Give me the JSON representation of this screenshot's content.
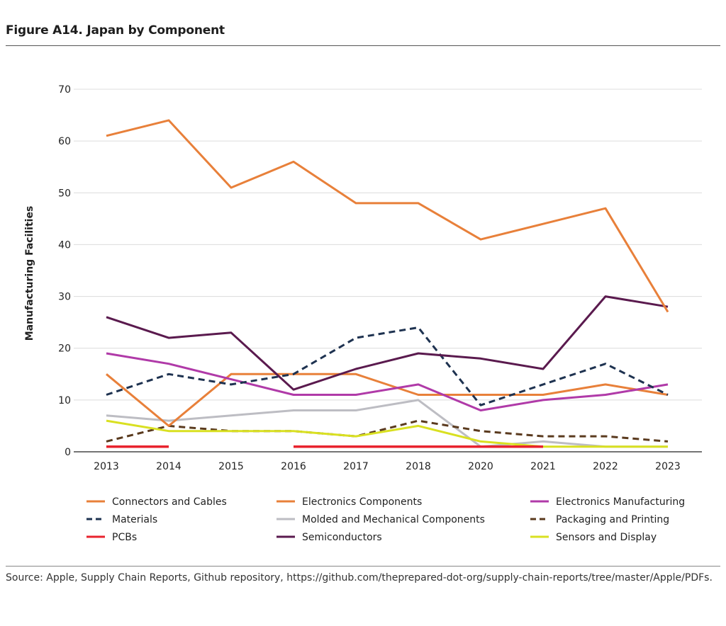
{
  "figure": {
    "title": "Figure A14. Japan by Component",
    "source": "Source: Apple, Supply Chain Reports, Github repository, https://github.com/theprepared-dot-org/supply-chain-reports/tree/master/Apple/PDFs."
  },
  "chart_data": {
    "type": "line",
    "title": "Figure A14. Japan by Component",
    "xlabel": "",
    "ylabel": "Manufacturing Facilities",
    "ylim": [
      0,
      70
    ],
    "yticks": [
      0,
      10,
      20,
      30,
      40,
      50,
      60,
      70
    ],
    "grid": true,
    "legend_position": "bottom",
    "categories": [
      "2013",
      "2014",
      "2015",
      "2016",
      "2017",
      "2018",
      "2020",
      "2021",
      "2022",
      "2023"
    ],
    "series": [
      {
        "name": "Connectors and Cables",
        "color": "#e8803a",
        "dash": "solid",
        "values": [
          15,
          5,
          15,
          15,
          15,
          11,
          11,
          11,
          13,
          11
        ]
      },
      {
        "name": "Electronics Components",
        "color": "#e8803a",
        "dash": "solid",
        "values": [
          61,
          64,
          51,
          56,
          48,
          48,
          41,
          44,
          47,
          27
        ]
      },
      {
        "name": "Electronics Manufacturing",
        "color": "#b03aa8",
        "dash": "solid",
        "values": [
          19,
          17,
          14,
          11,
          11,
          13,
          8,
          10,
          11,
          13
        ]
      },
      {
        "name": "Materials",
        "color": "#1e3250",
        "dash": "dashed",
        "values": [
          11,
          15,
          13,
          15,
          22,
          24,
          9,
          13,
          17,
          11
        ]
      },
      {
        "name": "Molded and Mechanical Components",
        "color": "#bdbdc3",
        "dash": "solid",
        "values": [
          7,
          6,
          7,
          8,
          8,
          10,
          1,
          2,
          1,
          1
        ]
      },
      {
        "name": "Packaging and Printing",
        "color": "#5a3a1e",
        "dash": "dashed",
        "values": [
          2,
          5,
          4,
          4,
          3,
          6,
          4,
          3,
          3,
          2
        ]
      },
      {
        "name": "PCBs",
        "color": "#e8232e",
        "dash": "solid",
        "values": [
          1,
          1,
          null,
          1,
          1,
          1,
          1,
          1,
          null,
          null
        ]
      },
      {
        "name": "Semiconductors",
        "color": "#5a1a4e",
        "dash": "solid",
        "values": [
          26,
          22,
          23,
          12,
          16,
          19,
          18,
          16,
          30,
          28
        ]
      },
      {
        "name": "Sensors and Display",
        "color": "#d9e021",
        "dash": "solid",
        "values": [
          6,
          4,
          4,
          4,
          3,
          5,
          2,
          1,
          1,
          1
        ]
      }
    ]
  }
}
